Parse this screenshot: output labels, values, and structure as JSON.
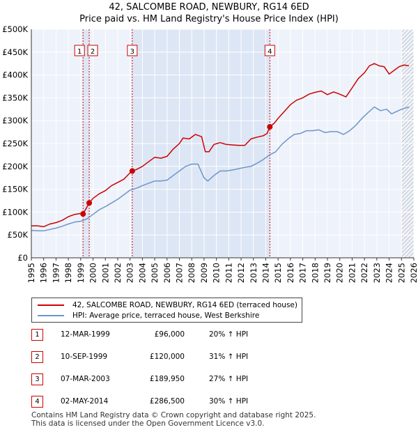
{
  "title": "42, SALCOMBE ROAD, NEWBURY, RG14 6ED",
  "subtitle": "Price paid vs. HM Land Registry's House Price Index (HPI)",
  "colors": {
    "price": "#cc0000",
    "hpi": "#6d95c9",
    "shade": "#dde6f5",
    "grid": "#cccccc",
    "plot_bg": "#eef2fa"
  },
  "chart_data": {
    "type": "line",
    "title": "42, SALCOMBE ROAD, NEWBURY, RG14 6ED",
    "xlim": [
      1995,
      2026
    ],
    "ylim": [
      0,
      500000
    ],
    "x_ticks": [
      "1995",
      "1996",
      "1997",
      "1998",
      "1999",
      "2000",
      "2001",
      "2002",
      "2003",
      "2004",
      "2005",
      "2006",
      "2007",
      "2008",
      "2009",
      "2010",
      "2011",
      "2012",
      "2013",
      "2014",
      "2015",
      "2016",
      "2017",
      "2018",
      "2019",
      "2020",
      "2021",
      "2022",
      "2023",
      "2024",
      "2025",
      "2026"
    ],
    "y_ticks": [
      {
        "value": 0,
        "label": "£0"
      },
      {
        "value": 50000,
        "label": "£50K"
      },
      {
        "value": 100000,
        "label": "£100K"
      },
      {
        "value": 150000,
        "label": "£150K"
      },
      {
        "value": 200000,
        "label": "£200K"
      },
      {
        "value": 250000,
        "label": "£250K"
      },
      {
        "value": 300000,
        "label": "£300K"
      },
      {
        "value": 350000,
        "label": "£350K"
      },
      {
        "value": 400000,
        "label": "£400K"
      },
      {
        "value": 450000,
        "label": "£450K"
      },
      {
        "value": 500000,
        "label": "£500K"
      }
    ],
    "shaded_periods": [
      [
        1999.19,
        1999.69
      ],
      [
        2003.18,
        2014.33
      ]
    ],
    "future_hatch_from": 2025.0,
    "series": [
      {
        "name": "42, SALCOMBE ROAD, NEWBURY, RG14 6ED (terraced house)",
        "key": "price",
        "x": [
          1995.0,
          1995.5,
          1996.0,
          1996.5,
          1997.0,
          1997.5,
          1998.0,
          1998.5,
          1999.0,
          1999.19,
          1999.69,
          2000.0,
          2000.5,
          2001.0,
          2001.5,
          2002.0,
          2002.5,
          2003.0,
          2003.18,
          2003.5,
          2004.0,
          2004.5,
          2005.0,
          2005.5,
          2006.0,
          2006.5,
          2007.0,
          2007.3,
          2007.8,
          2008.3,
          2008.8,
          2009.1,
          2009.4,
          2009.8,
          2010.3,
          2010.8,
          2011.3,
          2011.8,
          2012.3,
          2012.8,
          2013.3,
          2013.8,
          2014.1,
          2014.33,
          2014.7,
          2015.0,
          2015.5,
          2016.0,
          2016.5,
          2017.0,
          2017.5,
          2018.0,
          2018.5,
          2019.0,
          2019.5,
          2020.0,
          2020.5,
          2021.0,
          2021.5,
          2022.0,
          2022.4,
          2022.8,
          2023.2,
          2023.6,
          2024.0,
          2024.4,
          2024.8,
          2025.2,
          2025.6
        ],
        "y": [
          70000,
          70000,
          68000,
          74000,
          77000,
          82000,
          90000,
          95000,
          97000,
          96000,
          120000,
          130000,
          140000,
          147000,
          158000,
          165000,
          172000,
          186000,
          189950,
          193000,
          200000,
          210000,
          220000,
          218000,
          222000,
          238000,
          250000,
          262000,
          260000,
          270000,
          265000,
          232000,
          232000,
          248000,
          252000,
          248000,
          247000,
          246000,
          246000,
          260000,
          264000,
          267000,
          272000,
          286500,
          295000,
          305000,
          320000,
          335000,
          345000,
          350000,
          358000,
          362000,
          365000,
          357000,
          363000,
          358000,
          352000,
          372000,
          392000,
          405000,
          420000,
          425000,
          420000,
          418000,
          402000,
          410000,
          418000,
          422000,
          420000
        ]
      },
      {
        "name": "HPI: Average price, terraced house, West Berkshire",
        "key": "hpi",
        "x": [
          1995.0,
          1995.5,
          1996.0,
          1996.5,
          1997.0,
          1997.5,
          1998.0,
          1998.5,
          1999.0,
          1999.5,
          2000.0,
          2000.5,
          2001.0,
          2001.5,
          2002.0,
          2002.5,
          2003.0,
          2003.5,
          2004.0,
          2004.5,
          2005.0,
          2005.5,
          2006.0,
          2006.5,
          2007.0,
          2007.5,
          2008.0,
          2008.5,
          2009.0,
          2009.3,
          2009.8,
          2010.3,
          2010.8,
          2011.3,
          2011.8,
          2012.3,
          2012.8,
          2013.3,
          2013.8,
          2014.3,
          2014.8,
          2015.3,
          2015.8,
          2016.3,
          2016.8,
          2017.3,
          2017.8,
          2018.3,
          2018.8,
          2019.3,
          2019.8,
          2020.3,
          2020.8,
          2021.3,
          2021.8,
          2022.3,
          2022.8,
          2023.3,
          2023.8,
          2024.2,
          2024.6,
          2025.0,
          2025.6
        ],
        "y": [
          60000,
          59000,
          59000,
          62000,
          65000,
          69000,
          74000,
          78000,
          80000,
          85000,
          95000,
          105000,
          112000,
          120000,
          128000,
          138000,
          148000,
          152000,
          158000,
          163000,
          168000,
          168000,
          170000,
          180000,
          190000,
          200000,
          205000,
          205000,
          175000,
          168000,
          180000,
          190000,
          190000,
          192000,
          195000,
          198000,
          200000,
          207000,
          215000,
          225000,
          232000,
          248000,
          260000,
          270000,
          272000,
          278000,
          278000,
          280000,
          274000,
          276000,
          276000,
          270000,
          278000,
          290000,
          305000,
          318000,
          330000,
          322000,
          325000,
          315000,
          320000,
          325000,
          330000
        ]
      }
    ],
    "sale_markers": [
      {
        "label": "1",
        "x": 1999.19,
        "y": 96000
      },
      {
        "label": "2",
        "x": 1999.69,
        "y": 120000
      },
      {
        "label": "3",
        "x": 2003.18,
        "y": 189950
      },
      {
        "label": "4",
        "x": 2014.33,
        "y": 286500
      }
    ]
  },
  "legend": {
    "price_label": "42, SALCOMBE ROAD, NEWBURY, RG14 6ED (terraced house)",
    "hpi_label": "HPI: Average price, terraced house, West Berkshire"
  },
  "sales": [
    {
      "num": "1",
      "date": "12-MAR-1999",
      "price": "£96,000",
      "hpi": "20% ↑ HPI"
    },
    {
      "num": "2",
      "date": "10-SEP-1999",
      "price": "£120,000",
      "hpi": "31% ↑ HPI"
    },
    {
      "num": "3",
      "date": "07-MAR-2003",
      "price": "£189,950",
      "hpi": "27% ↑ HPI"
    },
    {
      "num": "4",
      "date": "02-MAY-2014",
      "price": "£286,500",
      "hpi": "30% ↑ HPI"
    }
  ],
  "footer": {
    "line1": "Contains HM Land Registry data © Crown copyright and database right 2025.",
    "line2": "This data is licensed under the Open Government Licence v3.0."
  }
}
